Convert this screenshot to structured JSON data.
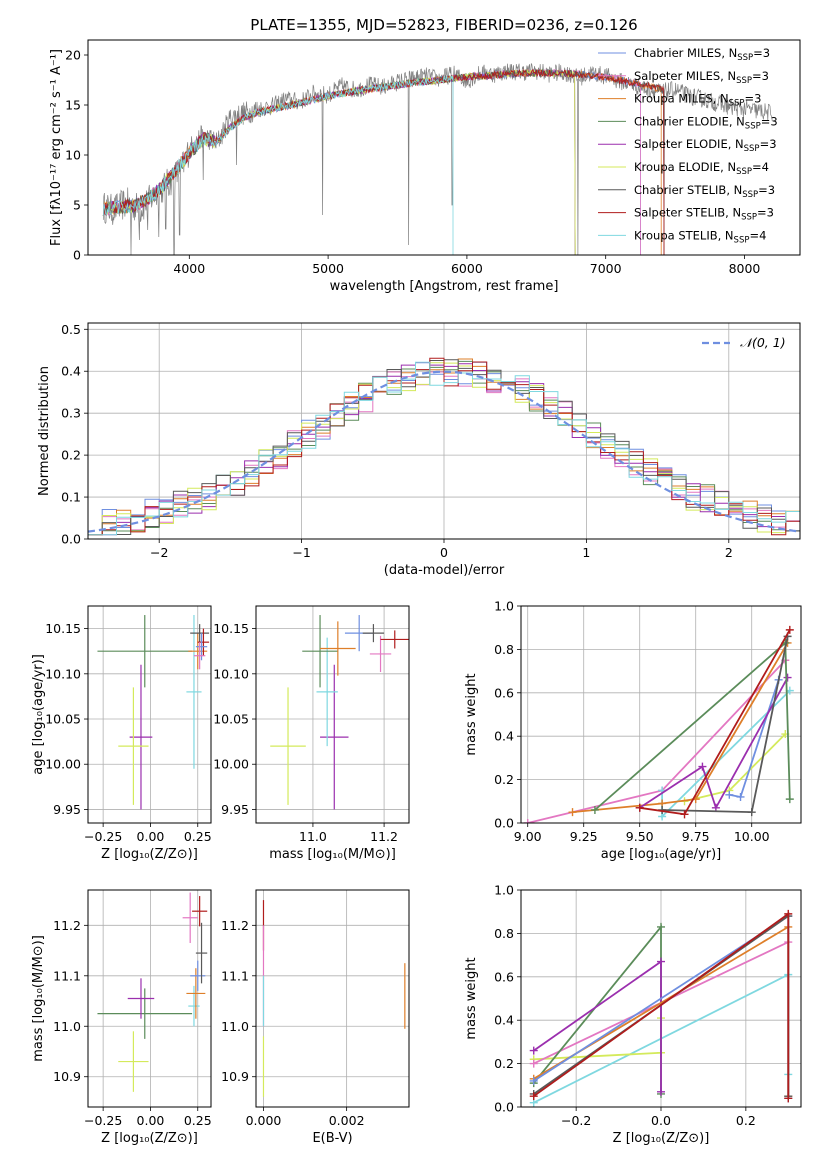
{
  "figure_title": "PLATE=1355, MJD=52823, FIBERID=0236, z=0.126",
  "colors": {
    "Chabrier MILES": "#6f8fe0",
    "Salpeter MILES": "#e377c2",
    "Kroupa MILES": "#de7f2a",
    "Chabrier ELODIE": "#5b8c5a",
    "Salpeter ELODIE": "#9b2fae",
    "Kroupa ELODIE": "#d4ea5b",
    "Chabrier STELIB": "#595959",
    "Salpeter STELIB": "#b01c1c",
    "Kroupa STELIB": "#7fd8e0"
  },
  "chart_data": [
    {
      "id": "spectrum",
      "type": "line",
      "title": "PLATE=1355, MJD=52823, FIBERID=0236, z=0.126",
      "xlabel": "wavelength [Angstrom, rest frame]",
      "ylabel": "Flux [fλ10⁻¹⁷ erg cm⁻² s⁻¹ A⁻¹]",
      "xlim": [
        3270,
        8400
      ],
      "ylim": [
        0,
        21.5
      ],
      "xticks": [
        4000,
        5000,
        6000,
        7000,
        8000
      ],
      "yticks": [
        0,
        5,
        10,
        15,
        20
      ],
      "grid": false,
      "legend_position": "top-right",
      "data_series": {
        "name": "data",
        "color": "#808080",
        "x": [
          3380,
          3450,
          3550,
          3650,
          3750,
          3850,
          3950,
          4000,
          4100,
          4200,
          4300,
          4400,
          4500,
          4600,
          4700,
          4800,
          4900,
          5000,
          5100,
          5200,
          5300,
          5400,
          5500,
          5600,
          5700,
          5800,
          5900,
          6000,
          6100,
          6200,
          6300,
          6400,
          6500,
          6600,
          6700,
          6800,
          6900,
          7000,
          7100,
          7200,
          7300,
          7400,
          7500,
          7600,
          7700,
          7800,
          7900,
          8000,
          8100,
          8200
        ],
        "y": [
          4.8,
          4.5,
          5.2,
          4.6,
          6.0,
          7.2,
          8.8,
          10.6,
          12.0,
          11.2,
          13.8,
          14.2,
          14.6,
          14.9,
          15.6,
          15.3,
          16.2,
          16.0,
          16.9,
          16.5,
          17.0,
          16.8,
          17.3,
          17.6,
          17.9,
          17.6,
          18.1,
          17.4,
          18.2,
          18.1,
          18.4,
          18.3,
          18.4,
          18.1,
          18.3,
          17.7,
          18.2,
          17.9,
          17.4,
          17.0,
          16.6,
          16.3,
          16.5,
          15.9,
          15.6,
          15.2,
          14.8,
          14.6,
          14.4,
          14.2
        ]
      },
      "dips": [
        {
          "x": 3580,
          "y": 0.0
        },
        {
          "x": 3640,
          "y": 1.5
        },
        {
          "x": 3700,
          "y": 2.5
        },
        {
          "x": 3780,
          "y": 1.8
        },
        {
          "x": 3830,
          "y": 2.6
        },
        {
          "x": 3890,
          "y": 0.0
        },
        {
          "x": 3930,
          "y": 2.0
        },
        {
          "x": 4100,
          "y": 7.5
        },
        {
          "x": 4340,
          "y": 9.0
        },
        {
          "x": 4960,
          "y": 4.0
        },
        {
          "x": 5580,
          "y": 1.0
        },
        {
          "x": 5895,
          "y": 5.0
        },
        {
          "x": 6800,
          "y": 0.0
        },
        {
          "x": 7420,
          "y": 0.0
        }
      ],
      "model_series_profile": {
        "x": [
          3380,
          3500,
          3600,
          3700,
          3800,
          3900,
          4000,
          4100,
          4200,
          4300,
          4400,
          4500,
          4600,
          4800,
          5000,
          5200,
          5400,
          5600,
          5800,
          6000,
          6200,
          6400,
          6600,
          6800,
          7000,
          7200,
          7400,
          7600,
          7800,
          8000,
          8200
        ],
        "y": [
          4.6,
          4.8,
          4.9,
          5.6,
          6.8,
          8.4,
          10.2,
          11.6,
          11.4,
          12.8,
          13.8,
          14.3,
          14.6,
          15.2,
          15.9,
          16.4,
          16.8,
          17.2,
          17.5,
          17.8,
          18.0,
          18.2,
          18.2,
          18.1,
          17.8,
          17.2,
          16.6,
          16.0,
          15.4,
          14.8,
          14.3
        ]
      },
      "model_series_ends": {
        "Chabrier MILES": 7250,
        "Salpeter MILES": 7250,
        "Kroupa MILES": 7400,
        "Chabrier ELODIE": 6780,
        "Salpeter ELODIE": 6780,
        "Kroupa ELODIE": 6780,
        "Chabrier STELIB": 7420,
        "Salpeter STELIB": 7420,
        "Kroupa STELIB": 5900
      },
      "legend": [
        {
          "label": "Chabrier MILES, N",
          "sub": "SSP",
          "value": "=3"
        },
        {
          "label": "Salpeter MILES, N",
          "sub": "SSP",
          "value": "=3"
        },
        {
          "label": "Kroupa MILES, N",
          "sub": "SSP",
          "value": "=3"
        },
        {
          "label": "Chabrier ELODIE, N",
          "sub": "SSP",
          "value": "=3"
        },
        {
          "label": "Salpeter ELODIE, N",
          "sub": "SSP",
          "value": "=3"
        },
        {
          "label": "Kroupa ELODIE, N",
          "sub": "SSP",
          "value": "=4"
        },
        {
          "label": "Chabrier STELIB, N",
          "sub": "SSP",
          "value": "=3"
        },
        {
          "label": "Salpeter STELIB, N",
          "sub": "SSP",
          "value": "=3"
        },
        {
          "label": "Kroupa STELIB, N",
          "sub": "SSP",
          "value": "=4"
        }
      ]
    },
    {
      "id": "residuals",
      "type": "step-histogram",
      "xlabel": "(data-model)/error",
      "ylabel": "Normed distribution",
      "xlim": [
        -2.5,
        2.5
      ],
      "ylim": [
        0,
        0.515
      ],
      "xticks": [
        -2,
        -1,
        0,
        1,
        2
      ],
      "yticks": [
        0.0,
        0.1,
        0.2,
        0.3,
        0.4,
        0.5
      ],
      "grid": true,
      "bin_width": 0.1,
      "reference_curve": {
        "label": "𝒩(0, 1)",
        "color": "#6f8fe0",
        "style": "dashed",
        "mean": 0,
        "sigma": 1
      },
      "legend_position": "top-right"
    },
    {
      "id": "age_vs_Z",
      "type": "errorbar",
      "xlabel": "Z [log₁₀(Z/Z⊙)]",
      "ylabel": "age  [log₁₀(age/yr)]",
      "xlim": [
        -0.33,
        0.32
      ],
      "ylim": [
        9.935,
        10.175
      ],
      "xticks": [
        -0.25,
        0.0,
        0.25
      ],
      "yticks": [
        9.95,
        10.0,
        10.05,
        10.1,
        10.15
      ],
      "grid": true,
      "points": [
        {
          "series": "Chabrier ELODIE",
          "x": -0.03,
          "xerr": 0.25,
          "y": 10.125,
          "yerr": 0.04
        },
        {
          "series": "Salpeter ELODIE",
          "x": -0.05,
          "xerr": 0.06,
          "y": 10.03,
          "yerr": 0.08
        },
        {
          "series": "Kroupa ELODIE",
          "x": -0.09,
          "xerr": 0.08,
          "y": 10.02,
          "yerr": 0.065
        },
        {
          "series": "Kroupa STELIB",
          "x": 0.23,
          "xerr": 0.04,
          "y": 10.08,
          "yerr": 0.085
        },
        {
          "series": "Kroupa MILES",
          "x": 0.25,
          "xerr": 0.05,
          "y": 10.125,
          "yerr": 0.02
        },
        {
          "series": "Chabrier STELIB",
          "x": 0.26,
          "xerr": 0.05,
          "y": 10.145,
          "yerr": 0.01
        },
        {
          "series": "Salpeter STELIB",
          "x": 0.28,
          "xerr": 0.03,
          "y": 10.135,
          "yerr": 0.015
        },
        {
          "series": "Chabrier MILES",
          "x": 0.27,
          "xerr": 0.03,
          "y": 10.13,
          "yerr": 0.015
        },
        {
          "series": "Salpeter MILES",
          "x": 0.26,
          "xerr": 0.03,
          "y": 10.12,
          "yerr": 0.015
        }
      ]
    },
    {
      "id": "age_vs_mass",
      "type": "errorbar",
      "xlabel": "mass [log₁₀(M/M⊙)]",
      "ylabel": "",
      "xlim": [
        10.84,
        11.27
      ],
      "ylim": [
        9.935,
        10.175
      ],
      "xticks": [
        11.0,
        11.2
      ],
      "yticks": [
        9.95,
        10.0,
        10.05,
        10.1,
        10.15
      ],
      "grid": true,
      "points": [
        {
          "series": "Kroupa ELODIE",
          "x": 10.93,
          "xerr": 0.05,
          "y": 10.02,
          "yerr": 0.065
        },
        {
          "series": "Salpeter ELODIE",
          "x": 11.06,
          "xerr": 0.04,
          "y": 10.03,
          "yerr": 0.08
        },
        {
          "series": "Kroupa STELIB",
          "x": 11.04,
          "xerr": 0.03,
          "y": 10.08,
          "yerr": 0.06
        },
        {
          "series": "Chabrier ELODIE",
          "x": 11.02,
          "xerr": 0.05,
          "y": 10.125,
          "yerr": 0.04
        },
        {
          "series": "Kroupa MILES",
          "x": 11.07,
          "xerr": 0.05,
          "y": 10.128,
          "yerr": 0.03
        },
        {
          "series": "Chabrier MILES",
          "x": 11.13,
          "xerr": 0.04,
          "y": 10.145,
          "yerr": 0.02
        },
        {
          "series": "Chabrier STELIB",
          "x": 11.17,
          "xerr": 0.03,
          "y": 10.145,
          "yerr": 0.01
        },
        {
          "series": "Salpeter MILES",
          "x": 11.19,
          "xerr": 0.03,
          "y": 10.122,
          "yerr": 0.02
        },
        {
          "series": "Salpeter STELIB",
          "x": 11.23,
          "xerr": 0.04,
          "y": 10.138,
          "yerr": 0.01
        }
      ]
    },
    {
      "id": "massweight_vs_age",
      "type": "line",
      "xlabel": "age  [log₁₀(age/yr)]",
      "ylabel": "mass weight",
      "xlim": [
        8.97,
        10.22
      ],
      "ylim": [
        0,
        1.0
      ],
      "xticks": [
        9.0,
        9.25,
        9.5,
        9.75,
        10.0
      ],
      "yticks": [
        0.0,
        0.2,
        0.4,
        0.6,
        0.8,
        1.0
      ],
      "grid": true,
      "series": [
        {
          "name": "Salpeter MILES",
          "x": [
            9.0,
            9.6,
            10.15
          ],
          "y": [
            0.0,
            0.15,
            0.75
          ]
        },
        {
          "name": "Kroupa STELIB",
          "x": [
            9.6,
            9.6,
            10.17
          ],
          "y": [
            0.15,
            0.03,
            0.61
          ]
        },
        {
          "name": "Kroupa ELODIE",
          "x": [
            9.7,
            9.9,
            10.15
          ],
          "y": [
            0.1,
            0.15,
            0.41
          ]
        },
        {
          "name": "Chabrier MILES",
          "x": [
            9.9,
            9.95,
            10.12
          ],
          "y": [
            0.13,
            0.12,
            0.66
          ]
        },
        {
          "name": "Kroupa MILES",
          "x": [
            9.2,
            9.6,
            9.75,
            10.16
          ],
          "y": [
            0.05,
            0.09,
            0.11,
            0.83
          ]
        },
        {
          "name": "Salpeter ELODIE",
          "x": [
            9.5,
            9.78,
            9.84,
            10.16
          ],
          "y": [
            0.07,
            0.26,
            0.07,
            0.67
          ]
        },
        {
          "name": "Chabrier ELODIE",
          "x": [
            9.3,
            10.15,
            10.17
          ],
          "y": [
            0.06,
            0.83,
            0.11
          ]
        },
        {
          "name": "Chabrier STELIB",
          "x": [
            9.6,
            10.0,
            10.16
          ],
          "y": [
            0.06,
            0.05,
            0.86
          ]
        },
        {
          "name": "Salpeter STELIB",
          "x": [
            9.5,
            9.7,
            10.17
          ],
          "y": [
            0.07,
            0.04,
            0.89
          ]
        }
      ]
    },
    {
      "id": "mass_vs_Z",
      "type": "errorbar",
      "xlabel": "Z [log₁₀(Z/Z⊙)]",
      "ylabel": "mass [log₁₀(M/M⊙)]",
      "xlim": [
        -0.33,
        0.32
      ],
      "ylim": [
        10.84,
        11.27
      ],
      "xticks": [
        -0.25,
        0.0,
        0.25
      ],
      "yticks": [
        10.9,
        11.0,
        11.1,
        11.2
      ],
      "grid": true,
      "points": [
        {
          "series": "Kroupa ELODIE",
          "x": -0.09,
          "xerr": 0.08,
          "y": 10.93,
          "yerr": 0.06
        },
        {
          "series": "Chabrier ELODIE",
          "x": -0.03,
          "xerr": 0.25,
          "y": 11.025,
          "yerr": 0.05
        },
        {
          "series": "Salpeter ELODIE",
          "x": -0.05,
          "xerr": 0.07,
          "y": 11.055,
          "yerr": 0.04
        },
        {
          "series": "Kroupa STELIB",
          "x": 0.23,
          "xerr": 0.03,
          "y": 11.04,
          "yerr": 0.04
        },
        {
          "series": "Kroupa MILES",
          "x": 0.24,
          "xerr": 0.05,
          "y": 11.065,
          "yerr": 0.05
        },
        {
          "series": "Chabrier MILES",
          "x": 0.25,
          "xerr": 0.04,
          "y": 11.1,
          "yerr": 0.03
        },
        {
          "series": "Chabrier STELIB",
          "x": 0.27,
          "xerr": 0.03,
          "y": 11.145,
          "yerr": 0.06
        },
        {
          "series": "Salpeter MILES",
          "x": 0.21,
          "xerr": 0.04,
          "y": 11.215,
          "yerr": 0.05
        },
        {
          "series": "Salpeter STELIB",
          "x": 0.26,
          "xerr": 0.04,
          "y": 11.228,
          "yerr": 0.03
        }
      ]
    },
    {
      "id": "mass_vs_ebv",
      "type": "errorbar",
      "xlabel": "E(B-V)",
      "ylabel": "",
      "xlim": [
        -0.00018,
        0.0035
      ],
      "ylim": [
        10.84,
        11.27
      ],
      "xticks": [
        0.0,
        0.002
      ],
      "yticks": [
        10.9,
        11.0,
        11.1,
        11.2
      ],
      "grid": true,
      "points": [
        {
          "series": "Salpeter STELIB",
          "x": 0.0,
          "xerr": 0.0,
          "y": 11.2,
          "yerr": 0.05
        },
        {
          "series": "Salpeter MILES",
          "x": 0.0,
          "xerr": 0.0,
          "y": 11.1,
          "yerr": 0.1
        },
        {
          "series": "Kroupa STELIB",
          "x": 0.0,
          "xerr": 0.0,
          "y": 11.05,
          "yerr": 0.05
        },
        {
          "series": "Kroupa ELODIE",
          "x": 0.0,
          "xerr": 0.0,
          "y": 10.92,
          "yerr": 0.06
        },
        {
          "series": "Kroupa MILES",
          "x": 0.0034,
          "xerr": 0.0,
          "y": 11.06,
          "yerr": 0.065
        }
      ]
    },
    {
      "id": "massweight_vs_Z",
      "type": "line",
      "xlabel": "Z [log₁₀(Z/Z⊙)]",
      "ylabel": "mass weight",
      "xlim": [
        -0.33,
        0.33
      ],
      "ylim": [
        0,
        1.0
      ],
      "xticks": [
        -0.2,
        0.0,
        0.2
      ],
      "yticks": [
        0.0,
        0.2,
        0.4,
        0.6,
        0.8,
        1.0
      ],
      "grid": true,
      "series": [
        {
          "name": "Kroupa STELIB",
          "x": [
            -0.3,
            0.3,
            0.3
          ],
          "y": [
            0.02,
            0.61,
            0.15
          ]
        },
        {
          "name": "Kroupa ELODIE",
          "x": [
            -0.3,
            0.0,
            0.0
          ],
          "y": [
            0.22,
            0.25,
            0.41
          ]
        },
        {
          "name": "Salpeter MILES",
          "x": [
            -0.3,
            0.3
          ],
          "y": [
            0.2,
            0.76
          ]
        },
        {
          "name": "Chabrier ELODIE",
          "x": [
            -0.3,
            0.0,
            0.0
          ],
          "y": [
            0.11,
            0.83,
            0.06
          ]
        },
        {
          "name": "Salpeter ELODIE",
          "x": [
            -0.3,
            0.0,
            0.0
          ],
          "y": [
            0.26,
            0.67,
            0.07
          ]
        },
        {
          "name": "Kroupa MILES",
          "x": [
            -0.3,
            0.3,
            0.3
          ],
          "y": [
            0.13,
            0.83,
            0.05
          ]
        },
        {
          "name": "Chabrier MILES",
          "x": [
            -0.3,
            0.3,
            0.3
          ],
          "y": [
            0.12,
            0.88,
            0.04
          ]
        },
        {
          "name": "Chabrier STELIB",
          "x": [
            -0.3,
            0.3,
            0.3
          ],
          "y": [
            0.06,
            0.88,
            0.05
          ]
        },
        {
          "name": "Salpeter STELIB",
          "x": [
            -0.3,
            0.3,
            0.3
          ],
          "y": [
            0.05,
            0.89,
            0.04
          ]
        }
      ]
    }
  ]
}
